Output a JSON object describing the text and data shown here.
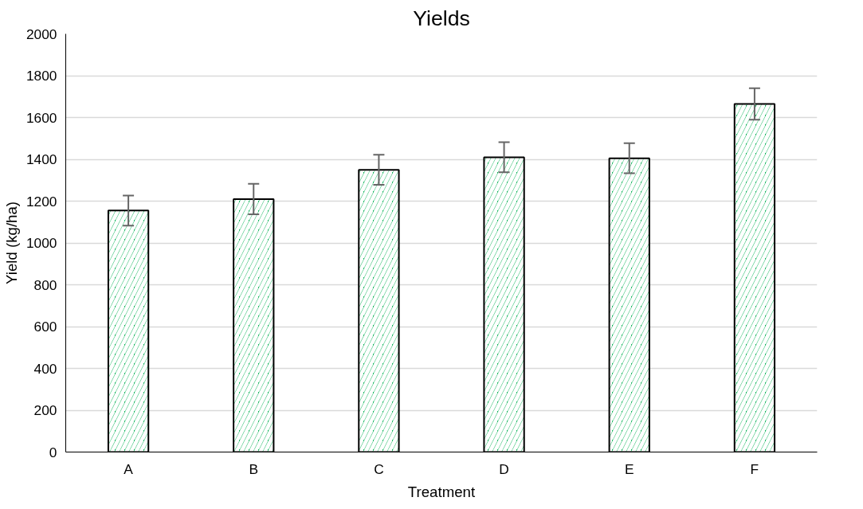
{
  "chart_data": {
    "type": "bar",
    "title": "Yields",
    "xlabel": "Treatment",
    "ylabel": "Yield (kg/ha)",
    "categories": [
      "A",
      "B",
      "C",
      "D",
      "E",
      "F"
    ],
    "series": [
      {
        "color": "#00b050",
        "values": [
          1155,
          1210,
          1350,
          1410,
          1405,
          1665
        ],
        "errors": [
          72,
          73,
          72,
          72,
          72,
          75
        ]
      }
    ],
    "ylim": [
      0,
      2000
    ],
    "yticks": [
      0,
      200,
      400,
      600,
      800,
      1000,
      1200,
      1400,
      1600,
      1800,
      2000
    ],
    "grid": "y"
  }
}
